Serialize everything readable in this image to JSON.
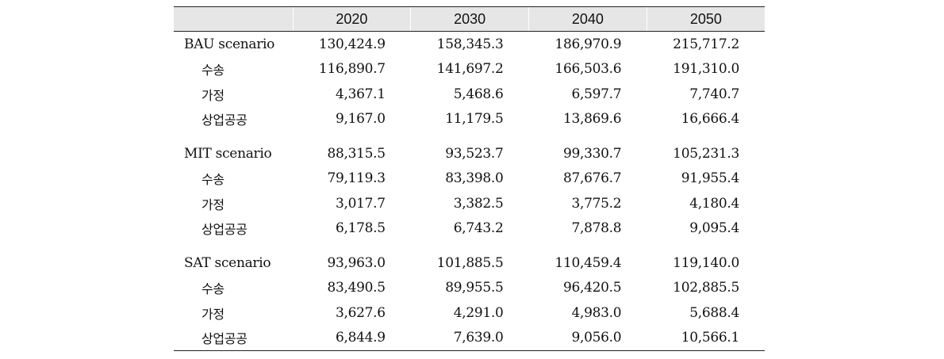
{
  "table": {
    "headers": [
      "",
      "2020",
      "2030",
      "2040",
      "2050"
    ],
    "groups": [
      {
        "label": "BAU  scenario",
        "values": [
          "130,424.9",
          "158,345.3",
          "186,970.9",
          "215,717.2"
        ],
        "rows": [
          {
            "label": "수송",
            "values": [
              "116,890.7",
              "141,697.2",
              "166,503.6",
              "191,310.0"
            ]
          },
          {
            "label": "가정",
            "values": [
              "4,367.1",
              "5,468.6",
              "6,597.7",
              "7,740.7"
            ]
          },
          {
            "label": "상업공공",
            "values": [
              "9,167.0",
              "11,179.5",
              "13,869.6",
              "16,666.4"
            ]
          }
        ]
      },
      {
        "label": "MIT  scenario",
        "values": [
          "88,315.5",
          "93,523.7",
          "99,330.7",
          "105,231.3"
        ],
        "rows": [
          {
            "label": "수송",
            "values": [
              "79,119.3",
              "83,398.0",
              "87,676.7",
              "91,955.4"
            ]
          },
          {
            "label": "가정",
            "values": [
              "3,017.7",
              "3,382.5",
              "3,775.2",
              "4,180.4"
            ]
          },
          {
            "label": "상업공공",
            "values": [
              "6,178.5",
              "6,743.2",
              "7,878.8",
              "9,095.4"
            ]
          }
        ]
      },
      {
        "label": "SAT  scenario",
        "values": [
          "93,963.0",
          "101,885.5",
          "110,459.4",
          "119,140.0"
        ],
        "rows": [
          {
            "label": "수송",
            "values": [
              "83,490.5",
              "89,955.5",
              "96,420.5",
              "102,885.5"
            ]
          },
          {
            "label": "가정",
            "values": [
              "3,627.6",
              "4,291.0",
              "4,983.0",
              "5,688.4"
            ]
          },
          {
            "label": "상업공공",
            "values": [
              "6,844.9",
              "7,639.0",
              "9,056.0",
              "10,566.1"
            ]
          }
        ]
      }
    ]
  }
}
